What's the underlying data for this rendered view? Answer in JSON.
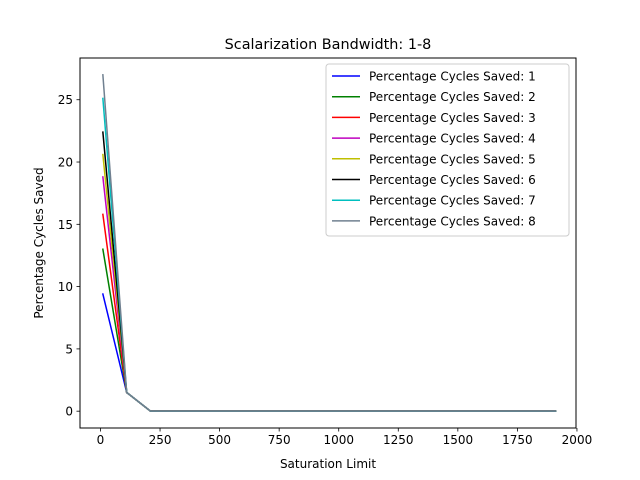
{
  "chart_data": {
    "type": "line",
    "title": "Scalarization Bandwidth: 1-8",
    "xlabel": "Saturation Limit",
    "ylabel": "Percentage Cycles Saved",
    "xlim": [
      -86,
      1996
    ],
    "ylim": [
      -1.35,
      28.35
    ],
    "xticks": [
      0,
      250,
      500,
      750,
      1000,
      1250,
      1500,
      1750,
      2000
    ],
    "xtick_labels": [
      "0",
      "250",
      "500",
      "750",
      "1000",
      "1250",
      "1500",
      "1750",
      "2000"
    ],
    "yticks": [
      0,
      5,
      10,
      15,
      20,
      25
    ],
    "ytick_labels": [
      "0",
      "5",
      "10",
      "15",
      "20",
      "25"
    ],
    "grid": false,
    "legend_position": "top-right",
    "x": [
      10,
      110,
      210,
      310,
      410,
      510,
      610,
      710,
      810,
      910,
      1010,
      1110,
      1210,
      1310,
      1410,
      1510,
      1610,
      1710,
      1810,
      1910
    ],
    "series": [
      {
        "name": "Percentage Cycles Saved: 1",
        "color": "#0000ff",
        "values": [
          9.4,
          1.5,
          0,
          0,
          0,
          0,
          0,
          0,
          0,
          0,
          0,
          0,
          0,
          0,
          0,
          0,
          0,
          0,
          0,
          0
        ]
      },
      {
        "name": "Percentage Cycles Saved: 2",
        "color": "#008000",
        "values": [
          13.0,
          1.5,
          0,
          0,
          0,
          0,
          0,
          0,
          0,
          0,
          0,
          0,
          0,
          0,
          0,
          0,
          0,
          0,
          0,
          0
        ]
      },
      {
        "name": "Percentage Cycles Saved: 3",
        "color": "#ff0000",
        "values": [
          15.8,
          1.5,
          0,
          0,
          0,
          0,
          0,
          0,
          0,
          0,
          0,
          0,
          0,
          0,
          0,
          0,
          0,
          0,
          0,
          0
        ]
      },
      {
        "name": "Percentage Cycles Saved: 4",
        "color": "#bf00bf",
        "values": [
          18.8,
          1.5,
          0,
          0,
          0,
          0,
          0,
          0,
          0,
          0,
          0,
          0,
          0,
          0,
          0,
          0,
          0,
          0,
          0,
          0
        ]
      },
      {
        "name": "Percentage Cycles Saved: 5",
        "color": "#bfbf00",
        "values": [
          20.6,
          1.5,
          0,
          0,
          0,
          0,
          0,
          0,
          0,
          0,
          0,
          0,
          0,
          0,
          0,
          0,
          0,
          0,
          0,
          0
        ]
      },
      {
        "name": "Percentage Cycles Saved: 6",
        "color": "#000000",
        "values": [
          22.4,
          1.5,
          0,
          0,
          0,
          0,
          0,
          0,
          0,
          0,
          0,
          0,
          0,
          0,
          0,
          0,
          0,
          0,
          0,
          0
        ]
      },
      {
        "name": "Percentage Cycles Saved: 7",
        "color": "#00bfbf",
        "values": [
          25.1,
          1.5,
          0,
          0,
          0,
          0,
          0,
          0,
          0,
          0,
          0,
          0,
          0,
          0,
          0,
          0,
          0,
          0,
          0,
          0
        ]
      },
      {
        "name": "Percentage Cycles Saved: 8",
        "color": "#708090",
        "values": [
          27.0,
          1.5,
          0,
          0,
          0,
          0,
          0,
          0,
          0,
          0,
          0,
          0,
          0,
          0,
          0,
          0,
          0,
          0,
          0,
          0
        ]
      }
    ]
  }
}
